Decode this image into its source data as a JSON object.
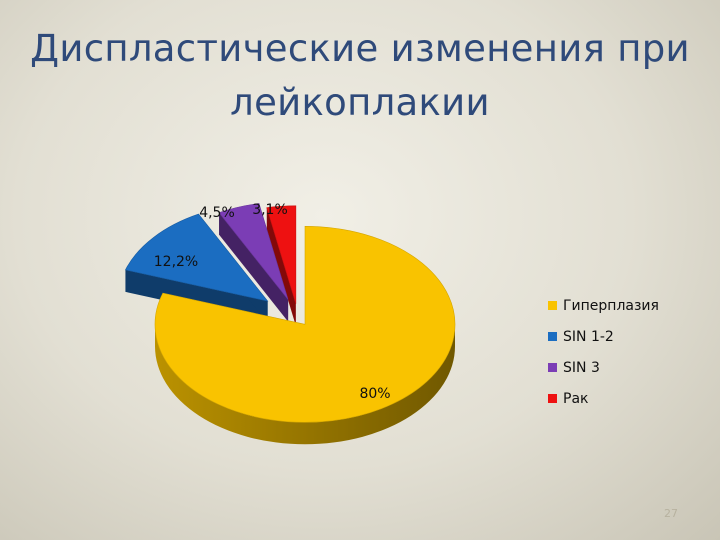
{
  "slide": {
    "title_line1": "Диспластические изменения при",
    "title_line2": "лейкоплакии",
    "page_number": "27"
  },
  "chart_data": {
    "type": "pie",
    "title": "Диспластические изменения при лейкоплакии",
    "categories": [
      "Гиперплазия",
      "SIN 1-2",
      "SIN 3",
      "Рак"
    ],
    "values": [
      80,
      12.2,
      4.5,
      3.1
    ],
    "data_labels": [
      "80%",
      "12,2%",
      "4,5%",
      "3,1%"
    ],
    "colors": [
      "#F9C300",
      "#1B6DC1",
      "#7B3DB5",
      "#EE1111"
    ],
    "exploded": true,
    "three_d": true,
    "legend_position": "right"
  }
}
